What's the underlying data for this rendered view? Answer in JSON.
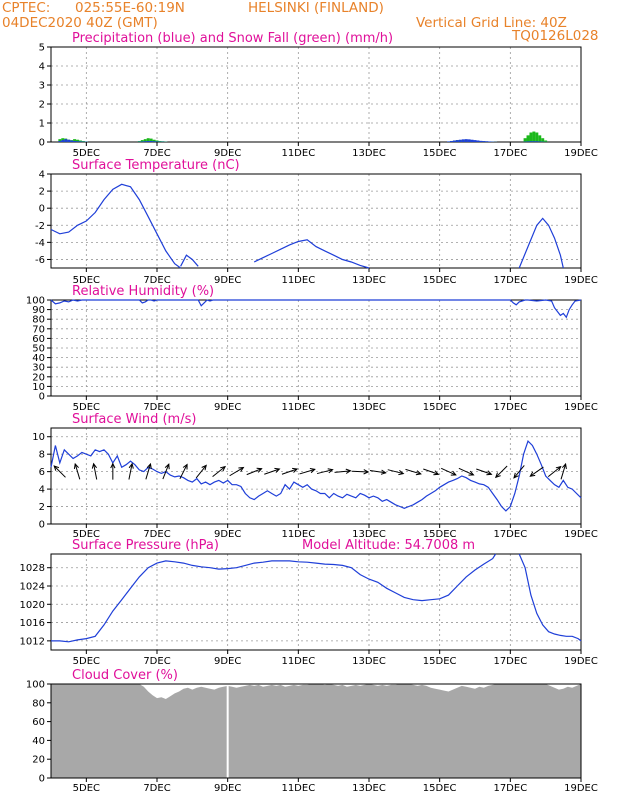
{
  "header": {
    "source": "CPTEC:",
    "coords": "025:55E-60:19N",
    "location": "HELSINKI (FINLAND)",
    "run": "04DEC2020 40Z (GMT)",
    "vgrid": "Vertical Grid Line: 40Z",
    "code": "TQ0126L028"
  },
  "x_axis": {
    "labels": [
      "5DEC",
      "7DEC",
      "9DEC",
      "11DEC",
      "13DEC",
      "15DEC",
      "17DEC",
      "19DEC"
    ],
    "label_hours": [
      24,
      72,
      120,
      168,
      216,
      264,
      312,
      360
    ],
    "range_hours": [
      0,
      360
    ]
  },
  "colors": {
    "line": "#1f3fd8",
    "snow": "#1bb81b",
    "cloud": "#a8a8a8",
    "title": "#e0109a",
    "header": "#e8822a",
    "arrow": "#000000"
  },
  "chart_data": [
    {
      "id": "precip",
      "type": "bar",
      "title": "Precipitation (blue) and Snow Fall (green) (mm/h)",
      "ylim": [
        0,
        5
      ],
      "yticks": [
        0,
        1,
        2,
        3,
        4,
        5
      ],
      "grid": true,
      "x_hours": [
        6,
        8,
        10,
        12,
        14,
        16,
        18,
        20,
        22,
        24,
        60,
        62,
        64,
        66,
        68,
        70,
        72,
        74,
        76,
        78,
        270,
        272,
        274,
        276,
        278,
        280,
        282,
        284,
        286,
        288,
        290,
        292,
        294,
        296,
        298,
        300,
        302,
        322,
        324,
        326,
        328,
        330,
        332,
        334,
        336
      ],
      "rain": [
        0.05,
        0.1,
        0.15,
        0.12,
        0.08,
        0.05,
        0.04,
        0.03,
        0.02,
        0.02,
        0.02,
        0.03,
        0.04,
        0.05,
        0.05,
        0.04,
        0.03,
        0.02,
        0.02,
        0.01,
        0.03,
        0.05,
        0.08,
        0.1,
        0.12,
        0.14,
        0.15,
        0.14,
        0.12,
        0.1,
        0.08,
        0.06,
        0.05,
        0.04,
        0.03,
        0.02,
        0.01,
        0.02,
        0.03,
        0.04,
        0.04,
        0.04,
        0.03,
        0.02,
        0.01
      ],
      "snow": [
        0.15,
        0.2,
        0.18,
        0.12,
        0.1,
        0.15,
        0.12,
        0.08,
        0.05,
        0.03,
        0.05,
        0.1,
        0.15,
        0.2,
        0.18,
        0.12,
        0.08,
        0.05,
        0.04,
        0.02,
        0.03,
        0.05,
        0.08,
        0.1,
        0.1,
        0.1,
        0.12,
        0.12,
        0.1,
        0.08,
        0.06,
        0.05,
        0.04,
        0.03,
        0.02,
        0.02,
        0.01,
        0.2,
        0.35,
        0.5,
        0.55,
        0.5,
        0.35,
        0.2,
        0.08
      ]
    },
    {
      "id": "temperature",
      "type": "line",
      "title": "Surface Temperature (nC)",
      "ylim": [
        -7,
        4
      ],
      "yticks": [
        -6,
        -4,
        -2,
        0,
        2,
        4
      ],
      "grid": true,
      "segments": [
        {
          "x": [
            0,
            6,
            12,
            18,
            24,
            30,
            36,
            42,
            48,
            54,
            60,
            66,
            72,
            78,
            84,
            88
          ],
          "y": [
            -2.5,
            -3.0,
            -2.8,
            -2.0,
            -1.5,
            -0.5,
            1.0,
            2.2,
            2.8,
            2.5,
            1.0,
            -1.0,
            -3.0,
            -5.0,
            -6.5,
            -7.0
          ]
        },
        {
          "x": [
            88,
            92,
            96,
            100
          ],
          "y": [
            -6.8,
            -5.5,
            -6.0,
            -6.8
          ]
        },
        {
          "x": [
            138,
            144,
            150,
            156,
            162,
            168,
            174,
            180,
            186,
            192,
            198,
            204,
            210,
            216
          ],
          "y": [
            -6.3,
            -5.8,
            -5.3,
            -4.8,
            -4.3,
            -3.9,
            -3.7,
            -4.5,
            -5.0,
            -5.5,
            -6.0,
            -6.3,
            -6.7,
            -7.0
          ]
        },
        {
          "x": [
            318,
            324,
            330,
            334,
            338,
            342,
            346,
            348
          ],
          "y": [
            -7.0,
            -4.5,
            -2.0,
            -1.2,
            -2.0,
            -3.5,
            -5.5,
            -7.0
          ]
        }
      ]
    },
    {
      "id": "humidity",
      "type": "line",
      "title": "Relative Humidity (%)",
      "ylim": [
        0,
        100
      ],
      "yticks": [
        0,
        10,
        20,
        30,
        40,
        50,
        60,
        70,
        80,
        90,
        100
      ],
      "grid": true,
      "series_y": {
        "x": [
          0,
          3,
          6,
          9,
          12,
          15,
          18,
          21,
          24,
          60,
          62,
          64,
          66,
          68,
          70,
          72,
          100,
          102,
          104,
          106,
          108,
          110,
          312,
          314,
          316,
          318,
          320,
          322,
          324,
          330,
          336,
          340,
          342,
          344,
          346,
          348,
          350,
          352,
          354,
          356,
          360
        ],
        "y": [
          100,
          96,
          97,
          99,
          98,
          100,
          99,
          100,
          100,
          100,
          97,
          98,
          100,
          100,
          99,
          100,
          100,
          94,
          97,
          100,
          99,
          100,
          100,
          97,
          95,
          98,
          99,
          100,
          100,
          99,
          100,
          99,
          92,
          88,
          84,
          86,
          82,
          90,
          95,
          99,
          100
        ]
      }
    },
    {
      "id": "wind",
      "type": "line",
      "title": "Surface Wind (m/s)",
      "ylim": [
        0,
        11
      ],
      "yticks": [
        0,
        2,
        4,
        6,
        8,
        10
      ],
      "grid": true,
      "series_y": {
        "x": [
          0,
          3,
          6,
          9,
          12,
          15,
          18,
          21,
          24,
          27,
          30,
          33,
          36,
          39,
          42,
          45,
          48,
          51,
          54,
          57,
          60,
          63,
          66,
          69,
          72,
          75,
          78,
          81,
          84,
          87,
          90,
          93,
          96,
          99,
          102,
          105,
          108,
          111,
          114,
          117,
          120,
          123,
          126,
          129,
          132,
          135,
          138,
          141,
          144,
          147,
          150,
          153,
          156,
          159,
          162,
          165,
          168,
          171,
          174,
          177,
          180,
          183,
          186,
          189,
          192,
          195,
          198,
          201,
          204,
          207,
          210,
          213,
          216,
          219,
          222,
          225,
          228,
          231,
          234,
          237,
          240,
          243,
          246,
          249,
          252,
          255,
          258,
          261,
          264,
          267,
          270,
          273,
          276,
          279,
          282,
          285,
          288,
          291,
          294,
          297,
          300,
          303,
          306,
          309,
          312,
          315,
          318,
          321,
          324,
          327,
          330,
          333,
          336,
          339,
          342,
          345,
          348,
          351,
          354,
          357,
          360
        ],
        "y": [
          6.5,
          9.0,
          7.0,
          8.5,
          8.0,
          7.5,
          7.8,
          8.2,
          8.0,
          7.8,
          8.5,
          8.3,
          8.5,
          8.0,
          7.0,
          7.8,
          6.5,
          6.8,
          7.2,
          6.8,
          6.2,
          6.0,
          6.5,
          6.3,
          6.0,
          5.8,
          6.0,
          5.6,
          5.4,
          5.5,
          5.3,
          5.0,
          4.8,
          5.2,
          4.6,
          4.8,
          4.5,
          4.8,
          5.0,
          4.7,
          5.0,
          4.5,
          4.5,
          4.3,
          3.5,
          3.0,
          2.8,
          3.2,
          3.5,
          3.8,
          3.5,
          3.2,
          3.5,
          4.5,
          4.0,
          4.8,
          4.5,
          4.2,
          4.5,
          4.0,
          3.8,
          3.5,
          3.5,
          3.0,
          3.5,
          3.2,
          3.0,
          3.4,
          3.2,
          3.0,
          3.5,
          3.3,
          3.0,
          3.2,
          3.0,
          2.6,
          2.8,
          2.5,
          2.2,
          2.0,
          1.8,
          2.0,
          2.2,
          2.5,
          2.8,
          3.2,
          3.5,
          3.8,
          4.2,
          4.5,
          4.8,
          5.0,
          5.2,
          5.5,
          5.3,
          5.0,
          4.8,
          4.6,
          4.5,
          4.2,
          3.5,
          2.8,
          2.0,
          1.5,
          2.0,
          3.5,
          5.5,
          8.0,
          9.5,
          9.0,
          8.0,
          6.8,
          5.5,
          5.0,
          4.5,
          4.2,
          5.0,
          4.2,
          4.0,
          3.5,
          3.0
        ]
      },
      "arrows": [
        {
          "x": 6,
          "dx": -1,
          "dy": 1
        },
        {
          "x": 18,
          "dx": -0.3,
          "dy": 1
        },
        {
          "x": 30,
          "dx": -0.2,
          "dy": 1
        },
        {
          "x": 42,
          "dx": 0,
          "dy": 1
        },
        {
          "x": 54,
          "dx": 0.2,
          "dy": 1
        },
        {
          "x": 66,
          "dx": 0.3,
          "dy": 1
        },
        {
          "x": 78,
          "dx": 0.4,
          "dy": 1
        },
        {
          "x": 90,
          "dx": 0.5,
          "dy": 1
        },
        {
          "x": 102,
          "dx": 0.8,
          "dy": 1
        },
        {
          "x": 114,
          "dx": 1,
          "dy": 0.8
        },
        {
          "x": 126,
          "dx": 1,
          "dy": 0.6
        },
        {
          "x": 138,
          "dx": 1,
          "dy": 0.4
        },
        {
          "x": 150,
          "dx": 1,
          "dy": 0.35
        },
        {
          "x": 162,
          "dx": 1,
          "dy": 0.35
        },
        {
          "x": 174,
          "dx": 1,
          "dy": 0.3
        },
        {
          "x": 186,
          "dx": 1,
          "dy": 0.25
        },
        {
          "x": 198,
          "dx": 1,
          "dy": 0.1
        },
        {
          "x": 210,
          "dx": 1,
          "dy": -0.05
        },
        {
          "x": 222,
          "dx": 1,
          "dy": -0.15
        },
        {
          "x": 234,
          "dx": 1,
          "dy": -0.25
        },
        {
          "x": 246,
          "dx": 1,
          "dy": -0.3
        },
        {
          "x": 258,
          "dx": 1,
          "dy": -0.35
        },
        {
          "x": 270,
          "dx": 1,
          "dy": -0.45
        },
        {
          "x": 282,
          "dx": 1,
          "dy": -0.45
        },
        {
          "x": 294,
          "dx": 1,
          "dy": -0.35
        },
        {
          "x": 306,
          "dx": -1,
          "dy": -1
        },
        {
          "x": 318,
          "dx": -1,
          "dy": -1.2
        },
        {
          "x": 330,
          "dx": -1,
          "dy": -0.7
        },
        {
          "x": 342,
          "dx": 1,
          "dy": 0.8
        },
        {
          "x": 348,
          "dx": 0.3,
          "dy": 1
        }
      ]
    },
    {
      "id": "pressure",
      "type": "line",
      "title": "Surface Pressure (hPa)",
      "annotation": "Model Altitude: 54.7008 m",
      "ylim": [
        1010,
        1031
      ],
      "yticks": [
        1012,
        1016,
        1020,
        1024,
        1028
      ],
      "grid": true,
      "segments": [
        {
          "x": [
            0,
            6,
            12,
            18,
            24,
            30,
            36,
            42,
            48,
            54,
            60,
            66,
            72,
            78,
            84,
            90,
            96,
            102,
            108,
            114,
            120,
            126,
            132,
            138,
            144,
            150,
            156,
            162,
            168,
            174,
            180,
            186,
            192,
            198,
            204,
            210,
            216,
            222,
            228,
            234,
            240,
            246,
            252,
            258,
            264,
            270,
            276,
            282,
            288,
            294,
            300,
            302
          ],
          "y": [
            1012.0,
            1012.0,
            1011.8,
            1012.2,
            1012.5,
            1013.0,
            1015.5,
            1018.5,
            1021.0,
            1023.5,
            1026.0,
            1028.0,
            1029.0,
            1029.5,
            1029.3,
            1029.0,
            1028.5,
            1028.2,
            1028.0,
            1027.7,
            1027.8,
            1028.0,
            1028.5,
            1029.0,
            1029.2,
            1029.5,
            1029.5,
            1029.5,
            1029.3,
            1029.2,
            1029.0,
            1028.8,
            1028.7,
            1028.5,
            1028.0,
            1026.5,
            1025.5,
            1024.8,
            1023.5,
            1022.5,
            1021.5,
            1021.0,
            1020.8,
            1021.0,
            1021.2,
            1022.0,
            1024.0,
            1026.0,
            1027.5,
            1028.8,
            1030.0,
            1031.0
          ]
        },
        {
          "x": [
            318,
            322,
            326,
            330,
            334,
            338,
            342,
            346,
            350,
            354,
            358,
            360
          ],
          "y": [
            1031.0,
            1028.0,
            1022.0,
            1018.0,
            1015.5,
            1014.0,
            1013.5,
            1013.2,
            1013.0,
            1013.0,
            1012.5,
            1012.0
          ]
        }
      ]
    },
    {
      "id": "cloud",
      "type": "area",
      "title": "Cloud Cover (%)",
      "ylim": [
        0,
        100
      ],
      "yticks": [
        0,
        20,
        40,
        60,
        80,
        100
      ],
      "grid": false,
      "x": [
        0,
        3,
        6,
        9,
        12,
        15,
        18,
        21,
        24,
        27,
        30,
        33,
        36,
        39,
        42,
        45,
        48,
        51,
        54,
        57,
        60,
        63,
        66,
        69,
        72,
        75,
        78,
        81,
        84,
        87,
        90,
        93,
        96,
        99,
        102,
        105,
        108,
        111,
        114,
        117,
        120,
        123,
        126,
        129,
        132,
        135,
        138,
        141,
        144,
        147,
        150,
        153,
        156,
        159,
        162,
        165,
        168,
        171,
        174,
        177,
        180,
        183,
        186,
        189,
        192,
        195,
        198,
        201,
        204,
        207,
        210,
        213,
        216,
        219,
        222,
        225,
        228,
        231,
        234,
        237,
        240,
        243,
        246,
        249,
        252,
        255,
        258,
        261,
        264,
        267,
        270,
        273,
        276,
        279,
        282,
        285,
        288,
        291,
        294,
        297,
        300,
        303,
        306,
        309,
        312,
        315,
        318,
        321,
        324,
        327,
        330,
        333,
        336,
        339,
        342,
        345,
        348,
        351,
        354,
        357,
        360
      ],
      "values": [
        100,
        100,
        100,
        100,
        100,
        100,
        100,
        100,
        100,
        100,
        100,
        100,
        100,
        100,
        100,
        100,
        100,
        100,
        100,
        100,
        100,
        97,
        92,
        88,
        85,
        86,
        84,
        87,
        90,
        92,
        95,
        96,
        94,
        96,
        97,
        96,
        95,
        94,
        96,
        97,
        98,
        97,
        96,
        97,
        98,
        99,
        98,
        99,
        97,
        98,
        99,
        98,
        99,
        97,
        98,
        99,
        98,
        99,
        99,
        100,
        100,
        100,
        99,
        100,
        99,
        98,
        99,
        97,
        98,
        99,
        98,
        99,
        100,
        99,
        98,
        99,
        98,
        99,
        99,
        100,
        100,
        100,
        99,
        98,
        99,
        98,
        96,
        95,
        94,
        93,
        92,
        94,
        96,
        98,
        97,
        96,
        95,
        97,
        96,
        98,
        99,
        100,
        100,
        100,
        100,
        100,
        100,
        100,
        100,
        100,
        100,
        100,
        100,
        98,
        96,
        94,
        95,
        97,
        96,
        98,
        100
      ],
      "gaps_hours": [
        120
      ]
    }
  ]
}
